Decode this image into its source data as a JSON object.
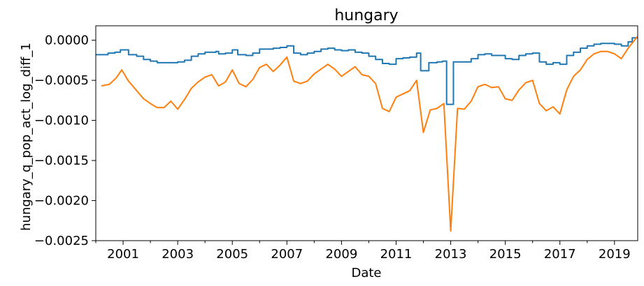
{
  "chart_data": {
    "type": "line",
    "title": "hungary",
    "xlabel": "Date",
    "ylabel": "hungary_q_pop_act_log_diff_1",
    "xlim": [
      2000.0,
      2019.85
    ],
    "ylim": [
      -0.0025,
      0.00018
    ],
    "x_ticks": [
      2001,
      2003,
      2005,
      2007,
      2009,
      2011,
      2013,
      2015,
      2017,
      2019
    ],
    "y_ticks": [
      0.0,
      -0.0005,
      -0.001,
      -0.0015,
      -0.002,
      -0.0025
    ],
    "y_tick_labels": [
      "0.0000",
      "−0.0005",
      "−0.0010",
      "−0.0015",
      "−0.0020",
      "−0.0025"
    ],
    "grid": false,
    "series": [
      {
        "color": "#1f77b4",
        "style": "step-monthly",
        "points": [
          [
            2000.0,
            -0.00018
          ],
          [
            2000.25,
            -0.00018
          ],
          [
            2000.45,
            -0.00016
          ],
          [
            2000.7,
            -0.00015
          ],
          [
            2000.9,
            -0.00012
          ],
          [
            2001.2,
            -0.00018
          ],
          [
            2001.5,
            -0.0002
          ],
          [
            2001.75,
            -0.00024
          ],
          [
            2002.0,
            -0.00026
          ],
          [
            2002.25,
            -0.00028
          ],
          [
            2002.75,
            -0.00028
          ],
          [
            2003.0,
            -0.00027
          ],
          [
            2003.25,
            -0.00025
          ],
          [
            2003.5,
            -0.0002
          ],
          [
            2003.75,
            -0.00017
          ],
          [
            2004.0,
            -0.00015
          ],
          [
            2004.4,
            -0.00014
          ],
          [
            2004.5,
            -0.00017
          ],
          [
            2004.75,
            -0.00016
          ],
          [
            2005.0,
            -0.00012
          ],
          [
            2005.2,
            -0.00018
          ],
          [
            2005.5,
            -0.00019
          ],
          [
            2005.75,
            -0.00016
          ],
          [
            2006.0,
            -0.00011
          ],
          [
            2006.5,
            -0.0001
          ],
          [
            2006.75,
            -9e-05
          ],
          [
            2007.0,
            -7e-05
          ],
          [
            2007.25,
            -0.00016
          ],
          [
            2007.5,
            -0.00018
          ],
          [
            2007.75,
            -0.00016
          ],
          [
            2008.0,
            -0.00014
          ],
          [
            2008.25,
            -0.00011
          ],
          [
            2008.5,
            -0.0001
          ],
          [
            2008.75,
            -0.00012
          ],
          [
            2009.0,
            -0.00013
          ],
          [
            2009.25,
            -0.00012
          ],
          [
            2009.5,
            -0.00015
          ],
          [
            2009.75,
            -0.00016
          ],
          [
            2010.0,
            -0.0002
          ],
          [
            2010.25,
            -0.00024
          ],
          [
            2010.5,
            -0.00029
          ],
          [
            2010.75,
            -0.0003
          ],
          [
            2011.0,
            -0.00023
          ],
          [
            2011.25,
            -0.00022
          ],
          [
            2011.5,
            -0.00021
          ],
          [
            2011.75,
            -0.00016
          ],
          [
            2011.9,
            -0.00038
          ],
          [
            2012.1,
            -0.00038
          ],
          [
            2012.2,
            -0.00028
          ],
          [
            2012.5,
            -0.00027
          ],
          [
            2012.7,
            -0.00026
          ],
          [
            2012.85,
            -0.0008
          ],
          [
            2013.0,
            -0.0008
          ],
          [
            2013.1,
            -0.00027
          ],
          [
            2013.5,
            -0.00027
          ],
          [
            2013.75,
            -0.00023
          ],
          [
            2014.0,
            -0.00018
          ],
          [
            2014.25,
            -0.00017
          ],
          [
            2014.5,
            -0.00019
          ],
          [
            2014.75,
            -0.00019
          ],
          [
            2015.0,
            -0.00023
          ],
          [
            2015.25,
            -0.00024
          ],
          [
            2015.5,
            -0.00019
          ],
          [
            2015.75,
            -0.00017
          ],
          [
            2016.0,
            -0.00016
          ],
          [
            2016.25,
            -0.00027
          ],
          [
            2016.5,
            -0.0003
          ],
          [
            2016.75,
            -0.00028
          ],
          [
            2017.0,
            -0.0003
          ],
          [
            2017.25,
            -0.00019
          ],
          [
            2017.5,
            -0.00015
          ],
          [
            2017.75,
            -0.0001
          ],
          [
            2018.0,
            -7e-05
          ],
          [
            2018.25,
            -5e-05
          ],
          [
            2018.5,
            -4e-05
          ],
          [
            2018.75,
            -4e-05
          ],
          [
            2019.0,
            -5e-05
          ],
          [
            2019.25,
            -7e-05
          ],
          [
            2019.5,
            -2e-05
          ],
          [
            2019.65,
            3e-05
          ],
          [
            2019.85,
            3e-05
          ]
        ]
      },
      {
        "color": "#ff7f0e",
        "style": "line",
        "points": [
          [
            2000.2,
            -0.00057
          ],
          [
            2000.5,
            -0.00055
          ],
          [
            2000.75,
            -0.00047
          ],
          [
            2000.95,
            -0.00037
          ],
          [
            2001.2,
            -0.00051
          ],
          [
            2001.5,
            -0.00063
          ],
          [
            2001.75,
            -0.00073
          ],
          [
            2002.0,
            -0.00079
          ],
          [
            2002.25,
            -0.00084
          ],
          [
            2002.5,
            -0.00084
          ],
          [
            2002.75,
            -0.00076
          ],
          [
            2003.0,
            -0.00086
          ],
          [
            2003.25,
            -0.00074
          ],
          [
            2003.5,
            -0.0006
          ],
          [
            2003.75,
            -0.00052
          ],
          [
            2004.0,
            -0.00046
          ],
          [
            2004.25,
            -0.00043
          ],
          [
            2004.5,
            -0.00057
          ],
          [
            2004.75,
            -0.00052
          ],
          [
            2005.0,
            -0.00037
          ],
          [
            2005.25,
            -0.00054
          ],
          [
            2005.5,
            -0.00058
          ],
          [
            2005.75,
            -0.00049
          ],
          [
            2006.0,
            -0.00034
          ],
          [
            2006.25,
            -0.0003
          ],
          [
            2006.5,
            -0.00039
          ],
          [
            2006.75,
            -0.00031
          ],
          [
            2007.0,
            -0.00021
          ],
          [
            2007.25,
            -0.00051
          ],
          [
            2007.5,
            -0.00054
          ],
          [
            2007.75,
            -0.00051
          ],
          [
            2008.0,
            -0.00042
          ],
          [
            2008.25,
            -0.00036
          ],
          [
            2008.5,
            -0.0003
          ],
          [
            2008.75,
            -0.00036
          ],
          [
            2009.0,
            -0.00045
          ],
          [
            2009.25,
            -0.00039
          ],
          [
            2009.5,
            -0.00033
          ],
          [
            2009.75,
            -0.00043
          ],
          [
            2010.0,
            -0.00045
          ],
          [
            2010.25,
            -0.00054
          ],
          [
            2010.5,
            -0.00085
          ],
          [
            2010.75,
            -0.00089
          ],
          [
            2011.0,
            -0.00071
          ],
          [
            2011.25,
            -0.00067
          ],
          [
            2011.5,
            -0.00063
          ],
          [
            2011.75,
            -0.0005
          ],
          [
            2012.0,
            -0.00115
          ],
          [
            2012.25,
            -0.00087
          ],
          [
            2012.5,
            -0.00085
          ],
          [
            2012.75,
            -0.00079
          ],
          [
            2013.0,
            -0.00238
          ],
          [
            2013.25,
            -0.00085
          ],
          [
            2013.5,
            -0.00086
          ],
          [
            2013.75,
            -0.00076
          ],
          [
            2014.0,
            -0.00058
          ],
          [
            2014.25,
            -0.00055
          ],
          [
            2014.5,
            -0.00059
          ],
          [
            2014.75,
            -0.00058
          ],
          [
            2015.0,
            -0.00073
          ],
          [
            2015.25,
            -0.00075
          ],
          [
            2015.5,
            -0.00062
          ],
          [
            2015.75,
            -0.00053
          ],
          [
            2016.0,
            -0.0005
          ],
          [
            2016.25,
            -0.00079
          ],
          [
            2016.5,
            -0.00088
          ],
          [
            2016.75,
            -0.00083
          ],
          [
            2017.0,
            -0.00092
          ],
          [
            2017.25,
            -0.00062
          ],
          [
            2017.5,
            -0.00045
          ],
          [
            2017.75,
            -0.00037
          ],
          [
            2018.0,
            -0.00024
          ],
          [
            2018.25,
            -0.00017
          ],
          [
            2018.5,
            -0.00014
          ],
          [
            2018.75,
            -0.00014
          ],
          [
            2019.0,
            -0.00017
          ],
          [
            2019.25,
            -0.00023
          ],
          [
            2019.5,
            -0.0001
          ],
          [
            2019.85,
            5e-05
          ]
        ]
      }
    ]
  }
}
